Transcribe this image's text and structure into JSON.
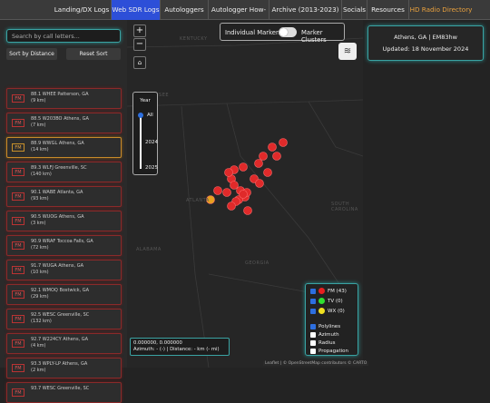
{
  "nav": [
    "Landing/DX Logs",
    "Web SDR Logs",
    "Autologgers",
    "Autologger How-To",
    "Archive (2013-2023)",
    "Socials",
    "Resources",
    "HD Radio Directory"
  ],
  "search_placeholder": "Search by call letters...",
  "buttons": [
    "Sort by Distance",
    "Reset Sort"
  ],
  "stations": [
    {
      "band": "FM",
      "title": "88.1 WHEE Patterson, GA",
      "distance": "(9 km)"
    },
    {
      "band": "FM",
      "title": "88.5 W203BO Athens, GA",
      "distance": "(7 km)"
    },
    {
      "band": "FM",
      "title": "88.9 WWGL Athens, GA",
      "distance": "(14 km)"
    },
    {
      "band": "FM",
      "title": "89.3 WLFJ Greenville, SC",
      "distance": "(140 km)"
    },
    {
      "band": "FM",
      "title": "90.1 WABE Atlanta, GA",
      "distance": "(93 km)"
    },
    {
      "band": "FM",
      "title": "90.5 WUOG Athens, GA",
      "distance": "(3 km)"
    },
    {
      "band": "FM",
      "title": "90.9 WRAF Toccoa Falls, GA",
      "distance": "(72 km)"
    },
    {
      "band": "FM",
      "title": "91.7 WUGA Athens, GA",
      "distance": "(10 km)"
    },
    {
      "band": "FM",
      "title": "92.1 WMOQ Bostwick, GA",
      "distance": "(29 km)"
    },
    {
      "band": "FM",
      "title": "92.5 WESC Greenville, SC",
      "distance": "(132 km)"
    },
    {
      "band": "FM",
      "title": "92.7 W224CY Athens, GA",
      "distance": "(4 km)"
    },
    {
      "band": "FM",
      "title": "93.3 WPLY-LP Athens, GA",
      "distance": "(2 km)"
    },
    {
      "band": "FM",
      "title": "93.7 WESC Greenville, SC",
      "distance": ""
    }
  ],
  "map": {
    "zoom_in": "+",
    "zoom_out": "−",
    "year_title": "Year",
    "year_options": [
      "All",
      "2024",
      "2025"
    ],
    "toggle": [
      "Individual Markers",
      "Marker Clusters"
    ],
    "labels": [
      "KENTUCKY",
      "TENNESSEE",
      "ATLANTA",
      "SOUTH CAROLINA",
      "GEORGIA",
      "ALABAMA"
    ],
    "legend": [
      "FM (43)",
      "TV (0)",
      "WX (0)",
      "Polylines",
      "Azimuth",
      "Radius",
      "Propagation"
    ],
    "coords": "0.000000, 0.000000",
    "azimuth": "Azimuth: - (-) | Distance: - km (- mi)",
    "attribution": "Leaflet | © OpenStreetMap contributors © CARTO"
  },
  "info": {
    "location": "Athens, GA | EM83hw",
    "updated": "Updated: 18 November 2024"
  }
}
